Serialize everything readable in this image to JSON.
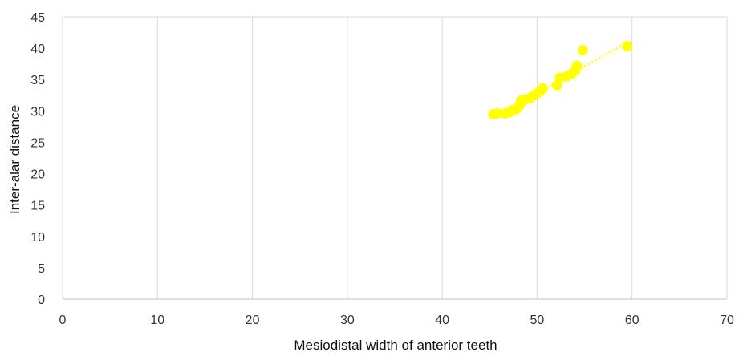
{
  "chart_data": {
    "type": "scatter",
    "title": "",
    "xlabel": "Mesiodistal width of anterior teeth",
    "ylabel": "Inter-alar distance",
    "xlim": [
      0,
      70
    ],
    "ylim": [
      0,
      45
    ],
    "xticks": [
      0,
      10,
      20,
      30,
      40,
      50,
      60,
      70
    ],
    "yticks": [
      0,
      5,
      10,
      15,
      20,
      25,
      30,
      35,
      40,
      45
    ],
    "grid": "vertical",
    "legend": "none",
    "marker_color": "#FFFF00",
    "trendline": {
      "style": "dotted",
      "color": "#FFFF00",
      "x": [
        45.4,
        59.6
      ],
      "y": [
        29.0,
        41.0
      ]
    },
    "series": [
      {
        "points": [
          {
            "x": 45.4,
            "y": 29.5
          },
          {
            "x": 45.8,
            "y": 29.6
          },
          {
            "x": 46.6,
            "y": 29.6
          },
          {
            "x": 47.1,
            "y": 29.8
          },
          {
            "x": 47.4,
            "y": 30.1
          },
          {
            "x": 47.8,
            "y": 30.3
          },
          {
            "x": 48.0,
            "y": 30.6
          },
          {
            "x": 48.2,
            "y": 31.0
          },
          {
            "x": 48.3,
            "y": 31.7
          },
          {
            "x": 48.7,
            "y": 31.8
          },
          {
            "x": 49.2,
            "y": 32.0
          },
          {
            "x": 49.6,
            "y": 32.4
          },
          {
            "x": 50.0,
            "y": 32.8
          },
          {
            "x": 50.3,
            "y": 33.1
          },
          {
            "x": 50.6,
            "y": 33.6
          },
          {
            "x": 52.1,
            "y": 34.1
          },
          {
            "x": 52.4,
            "y": 35.3
          },
          {
            "x": 53.1,
            "y": 35.5
          },
          {
            "x": 53.6,
            "y": 35.9
          },
          {
            "x": 54.0,
            "y": 36.4
          },
          {
            "x": 54.2,
            "y": 37.2
          },
          {
            "x": 54.8,
            "y": 39.7
          },
          {
            "x": 59.5,
            "y": 40.3
          }
        ]
      }
    ]
  }
}
